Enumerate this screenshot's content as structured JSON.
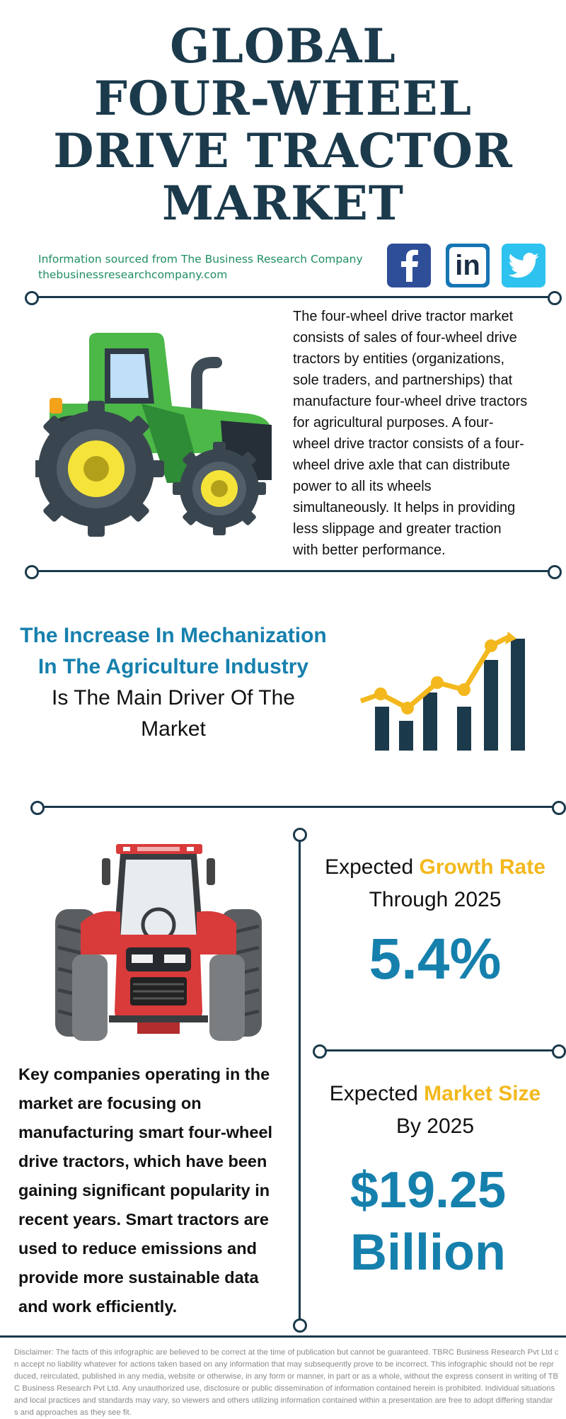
{
  "title": {
    "lines": [
      "GLOBAL",
      "FOUR-WHEEL",
      "DRIVE TRACTOR",
      "MARKET"
    ]
  },
  "source": {
    "line1": "Information sourced from The Business Research Company",
    "line2": "thebusinessresearchcompany.com"
  },
  "social": {
    "icons": [
      "facebook-icon",
      "linkedin-icon",
      "twitter-icon"
    ],
    "linkedin_text": "in"
  },
  "intro": {
    "lines": [
      "The four-wheel drive tractor market",
      "consists of sales of four-wheel drive",
      "tractors by entities (organizations,",
      "sole traders, and partnerships) that",
      "manufacture four-wheel drive tractors",
      "for agricultural purposes. A four-",
      "wheel drive tractor consists of a four-",
      "wheel drive axle that can distribute",
      "power to all its wheels",
      "simultaneously. It helps in providing",
      "less slippage and greater traction",
      "with better performance."
    ]
  },
  "driver": {
    "highlight_lines": [
      "The Increase In Mechanization",
      "In The Agriculture Industry"
    ],
    "rest_lines": [
      "Is The Main Driver Of The",
      "Market"
    ]
  },
  "growth": {
    "label_prefix": "Expected",
    "label_highlight": "Growth Rate",
    "label_suffix": "Through 2025",
    "value": "5.4%"
  },
  "market_size": {
    "label_prefix": "Expected",
    "label_highlight": "Market Size",
    "label_suffix": "By 2025",
    "value_line1": "$19.25",
    "value_line2": "Billion"
  },
  "companies": {
    "lines": [
      "Key companies operating in the",
      "market are focusing on",
      "manufacturing smart four-wheel",
      "drive tractors, which have been",
      "gaining significant popularity in",
      "recent years. Smart tractors are",
      "used to reduce emissions and",
      "provide more sustainable data",
      "and work efficiently."
    ]
  },
  "disclaimer": {
    "lines": [
      "Disclaimer: The facts of this infographic are believed to be correct at the time of publication but cannot be guaranteed. TBRC Business Research Pvt Ltd c",
      "n accept no liability whatever for actions taken based on any information that may subsequently prove to be incorrect. This infographic should not be repr",
      "duced, reirculated, published in any media, website or otherwise, in any form or manner, in part or as a whole, without the express consent in writing of TB",
      "C Business Research Pvt Ltd. Any unauthorized use, disclosure or public dissemination of information contained herein is prohibited. Individual situations",
      "and local practices and standards may vary, so viewers and others utilizing information contained within a presentation are free to adopt differing standar",
      "s and approaches as they see fit."
    ]
  },
  "colors": {
    "navy": "#1b3a4c",
    "blue": "#1680ad",
    "yellow": "#f3b81d",
    "green": "#1f8f61"
  }
}
